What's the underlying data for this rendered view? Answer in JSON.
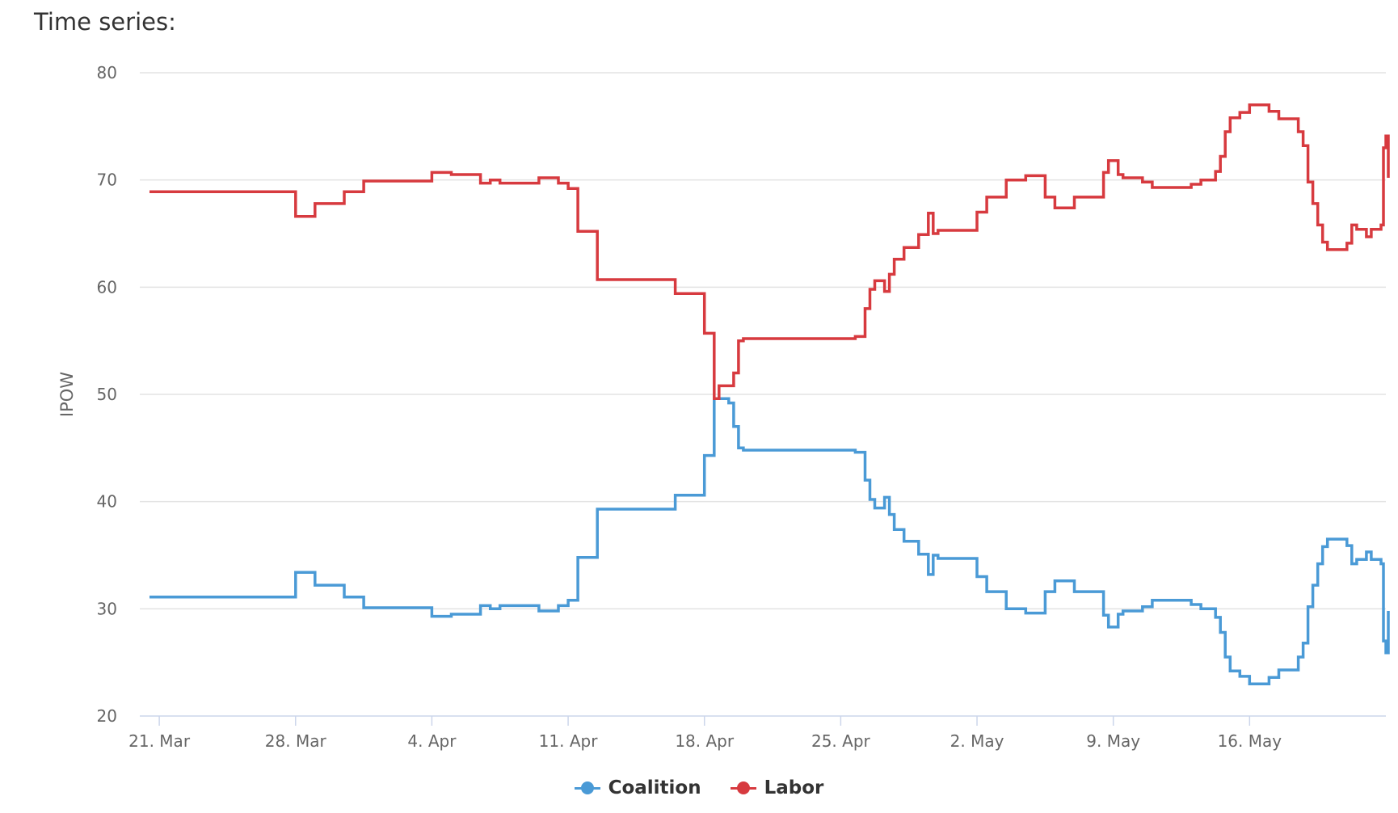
{
  "section_title": "Time series:",
  "chart_data": {
    "type": "line",
    "title": "",
    "xlabel": "",
    "ylabel": "IPOW",
    "ylim": [
      20,
      80
    ],
    "yticks": [
      20,
      30,
      40,
      50,
      60,
      70,
      80
    ],
    "xlim": [
      "2022-03-20",
      "2022-05-23"
    ],
    "xticks": [
      {
        "date": "2022-03-21",
        "label": "21. Mar"
      },
      {
        "date": "2022-03-28",
        "label": "28. Mar"
      },
      {
        "date": "2022-04-04",
        "label": "4. Apr"
      },
      {
        "date": "2022-04-11",
        "label": "11. Apr"
      },
      {
        "date": "2022-04-18",
        "label": "18. Apr"
      },
      {
        "date": "2022-04-25",
        "label": "25. Apr"
      },
      {
        "date": "2022-05-02",
        "label": "2. May"
      },
      {
        "date": "2022-05-09",
        "label": "9. May"
      },
      {
        "date": "2022-05-16",
        "label": "16. May"
      }
    ],
    "grid": true,
    "legend": "bottom-center",
    "step": true,
    "series": [
      {
        "name": "Coalition",
        "color": "#4a9ad6",
        "points": [
          [
            "2022-03-20 12:00",
            31.1
          ],
          [
            "2022-03-28 00:00",
            31.1
          ],
          [
            "2022-03-28 00:01",
            33.4
          ],
          [
            "2022-03-29 00:00",
            32.2
          ],
          [
            "2022-03-30 12:00",
            31.1
          ],
          [
            "2022-03-31 12:00",
            30.1
          ],
          [
            "2022-04-04 00:00",
            29.3
          ],
          [
            "2022-04-05 00:00",
            29.5
          ],
          [
            "2022-04-06 12:00",
            30.3
          ],
          [
            "2022-04-07 00:00",
            30.0
          ],
          [
            "2022-04-07 12:00",
            30.3
          ],
          [
            "2022-04-09 12:00",
            29.8
          ],
          [
            "2022-04-10 12:00",
            30.3
          ],
          [
            "2022-04-11 00:00",
            30.8
          ],
          [
            "2022-04-11 12:00",
            34.8
          ],
          [
            "2022-04-12 12:00",
            39.3
          ],
          [
            "2022-04-16 12:00",
            40.6
          ],
          [
            "2022-04-18 00:00",
            44.3
          ],
          [
            "2022-04-18 12:00",
            49.6
          ],
          [
            "2022-04-19 06:00",
            49.2
          ],
          [
            "2022-04-19 12:00",
            47.0
          ],
          [
            "2022-04-19 18:00",
            45.0
          ],
          [
            "2022-04-20 00:00",
            44.8
          ],
          [
            "2022-04-25 18:00",
            44.6
          ],
          [
            "2022-04-26 06:00",
            42.0
          ],
          [
            "2022-04-26 12:00",
            40.2
          ],
          [
            "2022-04-26 18:00",
            39.4
          ],
          [
            "2022-04-27 06:00",
            40.4
          ],
          [
            "2022-04-27 12:00",
            38.8
          ],
          [
            "2022-04-27 18:00",
            37.4
          ],
          [
            "2022-04-28 06:00",
            36.3
          ],
          [
            "2022-04-29 00:00",
            35.1
          ],
          [
            "2022-04-29 12:00",
            33.2
          ],
          [
            "2022-04-29 18:00",
            35.0
          ],
          [
            "2022-04-30 00:00",
            34.7
          ],
          [
            "2022-05-02 00:00",
            33.0
          ],
          [
            "2022-05-02 12:00",
            31.6
          ],
          [
            "2022-05-03 12:00",
            30.0
          ],
          [
            "2022-05-04 12:00",
            29.6
          ],
          [
            "2022-05-05 12:00",
            31.6
          ],
          [
            "2022-05-06 00:00",
            32.6
          ],
          [
            "2022-05-07 00:00",
            31.6
          ],
          [
            "2022-05-08 12:00",
            29.4
          ],
          [
            "2022-05-08 18:00",
            28.3
          ],
          [
            "2022-05-09 06:00",
            29.5
          ],
          [
            "2022-05-09 12:00",
            29.8
          ],
          [
            "2022-05-10 12:00",
            30.2
          ],
          [
            "2022-05-11 00:00",
            30.8
          ],
          [
            "2022-05-13 00:00",
            30.4
          ],
          [
            "2022-05-13 12:00",
            30.0
          ],
          [
            "2022-05-14 06:00",
            29.2
          ],
          [
            "2022-05-14 12:00",
            27.8
          ],
          [
            "2022-05-14 18:00",
            25.5
          ],
          [
            "2022-05-15 00:00",
            24.2
          ],
          [
            "2022-05-15 12:00",
            23.7
          ],
          [
            "2022-05-16 00:00",
            23.0
          ],
          [
            "2022-05-17 00:00",
            23.6
          ],
          [
            "2022-05-17 12:00",
            24.3
          ],
          [
            "2022-05-18 12:00",
            25.5
          ],
          [
            "2022-05-18 18:00",
            26.8
          ],
          [
            "2022-05-19 00:00",
            30.2
          ],
          [
            "2022-05-19 06:00",
            32.2
          ],
          [
            "2022-05-19 12:00",
            34.2
          ],
          [
            "2022-05-19 18:00",
            35.8
          ],
          [
            "2022-05-20 00:00",
            36.5
          ],
          [
            "2022-05-21 00:00",
            35.9
          ],
          [
            "2022-05-21 06:00",
            34.2
          ],
          [
            "2022-05-21 12:00",
            34.6
          ],
          [
            "2022-05-22 00:00",
            35.3
          ],
          [
            "2022-05-22 06:00",
            34.6
          ],
          [
            "2022-05-22 18:00",
            34.2
          ],
          [
            "2022-05-22 21:00",
            27.0
          ],
          [
            "2022-05-23 00:00",
            25.9
          ],
          [
            "2022-05-23 03:00",
            29.8
          ]
        ]
      },
      {
        "name": "Labor",
        "color": "#d73a3f",
        "points": [
          [
            "2022-03-20 12:00",
            68.9
          ],
          [
            "2022-03-28 00:00",
            68.9
          ],
          [
            "2022-03-28 00:01",
            66.6
          ],
          [
            "2022-03-29 00:00",
            67.8
          ],
          [
            "2022-03-30 12:00",
            68.9
          ],
          [
            "2022-03-31 12:00",
            69.9
          ],
          [
            "2022-04-04 00:00",
            70.7
          ],
          [
            "2022-04-05 00:00",
            70.5
          ],
          [
            "2022-04-06 12:00",
            69.7
          ],
          [
            "2022-04-07 00:00",
            70.0
          ],
          [
            "2022-04-07 12:00",
            69.7
          ],
          [
            "2022-04-09 12:00",
            70.2
          ],
          [
            "2022-04-10 12:00",
            69.7
          ],
          [
            "2022-04-11 00:00",
            69.2
          ],
          [
            "2022-04-11 12:00",
            65.2
          ],
          [
            "2022-04-12 12:00",
            60.7
          ],
          [
            "2022-04-16 12:00",
            59.4
          ],
          [
            "2022-04-18 00:00",
            55.7
          ],
          [
            "2022-04-18 12:00",
            49.6
          ],
          [
            "2022-04-18 18:00",
            50.8
          ],
          [
            "2022-04-19 12:00",
            52.0
          ],
          [
            "2022-04-19 18:00",
            55.0
          ],
          [
            "2022-04-20 00:00",
            55.2
          ],
          [
            "2022-04-25 18:00",
            55.4
          ],
          [
            "2022-04-26 06:00",
            58.0
          ],
          [
            "2022-04-26 12:00",
            59.8
          ],
          [
            "2022-04-26 18:00",
            60.6
          ],
          [
            "2022-04-27 06:00",
            59.6
          ],
          [
            "2022-04-27 12:00",
            61.2
          ],
          [
            "2022-04-27 18:00",
            62.6
          ],
          [
            "2022-04-28 06:00",
            63.7
          ],
          [
            "2022-04-29 00:00",
            64.9
          ],
          [
            "2022-04-29 12:00",
            66.9
          ],
          [
            "2022-04-29 18:00",
            65.0
          ],
          [
            "2022-04-30 00:00",
            65.3
          ],
          [
            "2022-05-02 00:00",
            67.0
          ],
          [
            "2022-05-02 12:00",
            68.4
          ],
          [
            "2022-05-03 12:00",
            70.0
          ],
          [
            "2022-05-04 12:00",
            70.4
          ],
          [
            "2022-05-05 12:00",
            68.4
          ],
          [
            "2022-05-06 00:00",
            67.4
          ],
          [
            "2022-05-07 00:00",
            68.4
          ],
          [
            "2022-05-08 12:00",
            70.7
          ],
          [
            "2022-05-08 18:00",
            71.8
          ],
          [
            "2022-05-09 06:00",
            70.5
          ],
          [
            "2022-05-09 12:00",
            70.2
          ],
          [
            "2022-05-10 12:00",
            69.8
          ],
          [
            "2022-05-11 00:00",
            69.3
          ],
          [
            "2022-05-13 00:00",
            69.6
          ],
          [
            "2022-05-13 12:00",
            70.0
          ],
          [
            "2022-05-14 06:00",
            70.8
          ],
          [
            "2022-05-14 12:00",
            72.2
          ],
          [
            "2022-05-14 18:00",
            74.5
          ],
          [
            "2022-05-15 00:00",
            75.8
          ],
          [
            "2022-05-15 12:00",
            76.3
          ],
          [
            "2022-05-16 00:00",
            77.0
          ],
          [
            "2022-05-17 00:00",
            76.4
          ],
          [
            "2022-05-17 12:00",
            75.7
          ],
          [
            "2022-05-18 12:00",
            74.5
          ],
          [
            "2022-05-18 18:00",
            73.2
          ],
          [
            "2022-05-19 00:00",
            69.8
          ],
          [
            "2022-05-19 06:00",
            67.8
          ],
          [
            "2022-05-19 12:00",
            65.8
          ],
          [
            "2022-05-19 18:00",
            64.2
          ],
          [
            "2022-05-20 00:00",
            63.5
          ],
          [
            "2022-05-21 00:00",
            64.1
          ],
          [
            "2022-05-21 06:00",
            65.8
          ],
          [
            "2022-05-21 12:00",
            65.4
          ],
          [
            "2022-05-22 00:00",
            64.7
          ],
          [
            "2022-05-22 06:00",
            65.4
          ],
          [
            "2022-05-22 18:00",
            65.8
          ],
          [
            "2022-05-22 21:00",
            73.0
          ],
          [
            "2022-05-23 00:00",
            74.1
          ],
          [
            "2022-05-23 03:00",
            70.2
          ]
        ]
      }
    ]
  }
}
